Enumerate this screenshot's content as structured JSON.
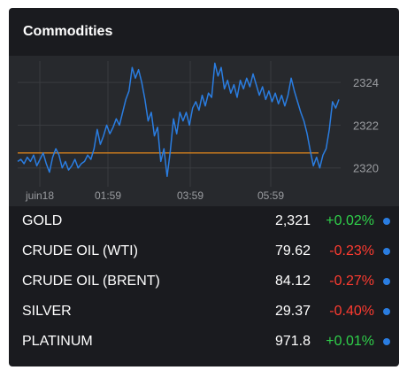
{
  "widget": {
    "title": "Commodities"
  },
  "chart_data": {
    "type": "line",
    "x_ticks": [
      "juin18",
      "01:59",
      "03:59",
      "05:59"
    ],
    "y_ticks": [
      2320,
      2322,
      2324
    ],
    "ylim": [
      2319.2,
      2325.0
    ],
    "reference_line": 2320.7,
    "series": [
      {
        "values": [
          2320.3,
          2320.4,
          2320.2,
          2320.5,
          2320.3,
          2320.6,
          2320.1,
          2320.4,
          2320.7,
          2320.2,
          2319.8,
          2320.5,
          2320.9,
          2320.6,
          2320.0,
          2320.3,
          2319.9,
          2320.1,
          2320.4,
          2320.0,
          2320.2,
          2320.3,
          2320.6,
          2320.4,
          2320.9,
          2321.8,
          2321.1,
          2321.5,
          2322.0,
          2321.6,
          2321.9,
          2322.3,
          2322.0,
          2322.6,
          2323.2,
          2323.6,
          2324.7,
          2324.2,
          2324.6,
          2324.0,
          2323.2,
          2322.2,
          2322.6,
          2321.5,
          2321.9,
          2320.3,
          2320.9,
          2319.6,
          2320.8,
          2322.3,
          2321.6,
          2322.6,
          2322.2,
          2322.6,
          2322.0,
          2322.8,
          2323.1,
          2322.7,
          2323.4,
          2322.9,
          2323.5,
          2323.3,
          2324.9,
          2324.3,
          2324.7,
          2323.7,
          2324.1,
          2323.5,
          2323.9,
          2323.3,
          2324.1,
          2323.7,
          2324.2,
          2323.8,
          2324.4,
          2323.9,
          2323.4,
          2323.8,
          2323.2,
          2323.6,
          2323.1,
          2323.5,
          2323.0,
          2323.4,
          2322.9,
          2323.4,
          2324.2,
          2323.6,
          2323.1,
          2322.6,
          2322.2,
          2321.6,
          2320.8,
          2320.1,
          2320.5,
          2320.0,
          2320.6,
          2320.9,
          2321.8,
          2323.1,
          2322.8,
          2323.2
        ]
      }
    ],
    "colors": {
      "line": "#2a7de1",
      "reference_line": "#c87a1e",
      "grid": "#3a3c40"
    }
  },
  "rows": [
    {
      "name": "GOLD",
      "price": "2,321",
      "change": "+0.02%",
      "direction": "up"
    },
    {
      "name": "CRUDE OIL (WTI)",
      "price": "79.62",
      "change": "-0.23%",
      "direction": "down"
    },
    {
      "name": "CRUDE OIL (BRENT)",
      "price": "84.12",
      "change": "-0.27%",
      "direction": "down"
    },
    {
      "name": "SILVER",
      "price": "29.37",
      "change": "-0.40%",
      "direction": "down"
    },
    {
      "name": "PLATINUM",
      "price": "971.8",
      "change": "+0.01%",
      "direction": "up"
    }
  ]
}
